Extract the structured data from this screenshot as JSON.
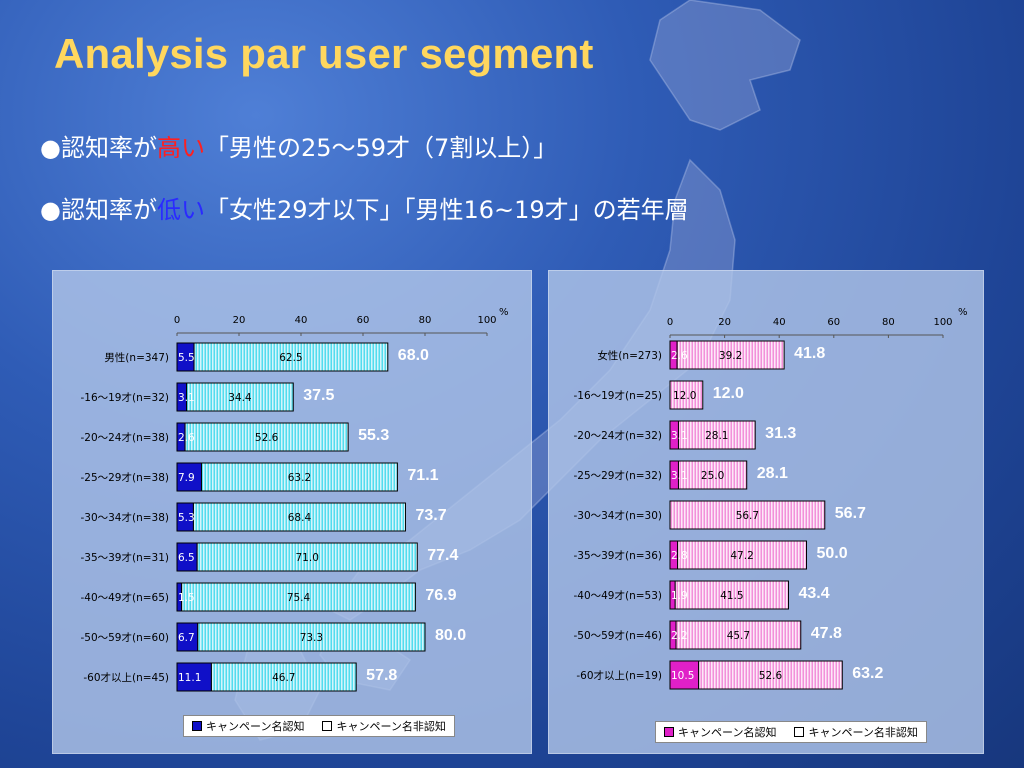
{
  "slide": {
    "title": "Analysis par user segment",
    "bullets": [
      {
        "mark": "●",
        "pre": "認知率が",
        "highlight": "高い",
        "highlight_color": "#ff2020",
        "post": "「男性の25～59才（7割以上）」"
      },
      {
        "mark": "●",
        "pre": "認知率が",
        "highlight": "低い",
        "highlight_color": "#2a2aff",
        "post": "「女性29才以下」「男性16~19才」の若年層"
      }
    ]
  },
  "chart_data": [
    {
      "type": "bar",
      "orientation": "horizontal",
      "stacked": true,
      "unit": "%",
      "xlim": [
        0,
        100
      ],
      "xticks": [
        0,
        20,
        40,
        60,
        80,
        100
      ],
      "categories": [
        "男性(n=347)",
        "-16～19才(n=32)",
        "-20～24才(n=38)",
        "-25～29才(n=38)",
        "-30～34才(n=38)",
        "-35～39才(n=31)",
        "-40～49才(n=65)",
        "-50～59才(n=60)",
        "-60才以上(n=45)"
      ],
      "series": [
        {
          "name": "キャンペーン名認知",
          "values": [
            5.5,
            3.1,
            2.6,
            7.9,
            5.3,
            6.5,
            1.5,
            6.7,
            11.1
          ],
          "labels": [
            "5.5",
            "3.1",
            "2.6",
            "7.9",
            "5.3",
            "6.5",
            "1.5",
            "6.7",
            "11.1"
          ],
          "color": "#1010c8"
        },
        {
          "name": "キャンペーン名非認知",
          "values": [
            62.5,
            34.4,
            52.6,
            63.2,
            68.4,
            71.0,
            75.4,
            73.3,
            46.7
          ],
          "labels": [
            "62.5",
            "34.4",
            "52.6",
            "63.2",
            "68.4",
            "71.0",
            "75.4",
            "73.3",
            "46.7"
          ],
          "color": "#33d6ea"
        }
      ],
      "totals": [
        "68.0",
        "37.5",
        "55.3",
        "71.1",
        "73.7",
        "77.4",
        "76.9",
        "80.0",
        "57.8"
      ],
      "legend_position": "bottom",
      "grid": false
    },
    {
      "type": "bar",
      "orientation": "horizontal",
      "stacked": true,
      "unit": "%",
      "xlim": [
        0,
        100
      ],
      "xticks": [
        0,
        20,
        40,
        60,
        80,
        100
      ],
      "categories": [
        "女性(n=273)",
        "-16～19才(n=25)",
        "-20～24才(n=32)",
        "-25～29才(n=32)",
        "-30～34才(n=30)",
        "-35～39才(n=36)",
        "-40～49才(n=53)",
        "-50～59才(n=46)",
        "-60才以上(n=19)"
      ],
      "series": [
        {
          "name": "キャンペーン名認知",
          "values": [
            2.6,
            0,
            3.1,
            3.1,
            0,
            2.8,
            1.9,
            2.2,
            10.5
          ],
          "labels": [
            "2.6",
            "",
            "3.1",
            "3.1",
            "",
            "2.8",
            "1.9",
            "2.2",
            "10.5"
          ],
          "color": "#e020c8"
        },
        {
          "name": "キャンペーン名非認知",
          "values": [
            39.2,
            12.0,
            28.1,
            25.0,
            56.7,
            47.2,
            41.5,
            45.7,
            52.6
          ],
          "labels": [
            "39.2",
            "12.0",
            "28.1",
            "25.0",
            "56.7",
            "47.2",
            "41.5",
            "45.7",
            "52.6"
          ],
          "color": "#f07ad2"
        }
      ],
      "totals": [
        "41.8",
        "12.0",
        "31.3",
        "28.1",
        "56.7",
        "50.0",
        "43.4",
        "47.8",
        "63.2"
      ],
      "legend_position": "bottom",
      "grid": false
    }
  ]
}
